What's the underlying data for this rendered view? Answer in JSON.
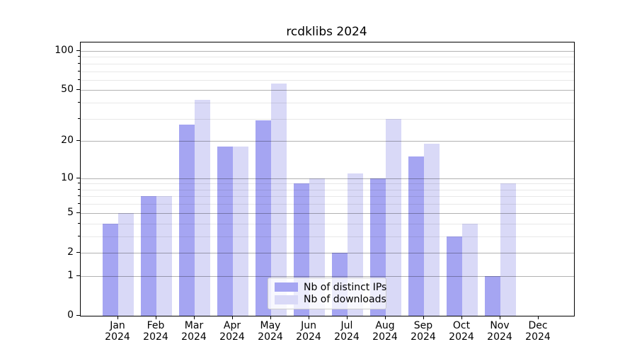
{
  "chart_data": {
    "type": "bar",
    "title": "rcdklibs 2024",
    "categories": [
      "Jan",
      "Feb",
      "Mar",
      "Apr",
      "May",
      "Jun",
      "Jul",
      "Aug",
      "Sep",
      "Oct",
      "Nov",
      "Dec"
    ],
    "category_year": "2024",
    "series": [
      {
        "name": "Nb of distinct IPs",
        "color": "#a5a5f2",
        "values": [
          4,
          7,
          27,
          18,
          29,
          9,
          2,
          10,
          15,
          3,
          1,
          0
        ]
      },
      {
        "name": "Nb of downloads",
        "color": "#d9d9f7",
        "values": [
          5,
          7,
          42,
          18,
          56,
          10,
          11,
          30,
          19,
          4,
          9,
          0
        ]
      }
    ],
    "yscale": "log1p",
    "ylim": [
      0,
      116
    ],
    "yticks": [
      0,
      1,
      2,
      5,
      10,
      20,
      50,
      100
    ],
    "yticks_minor": [
      3,
      4,
      6,
      7,
      8,
      9,
      30,
      40,
      60,
      70,
      80,
      90
    ],
    "grid": true,
    "grid_above_bars": true,
    "legend_position": "bottom-center",
    "colors": {
      "grid_major": "rgba(0,0,0,0.30)",
      "grid_minor": "rgba(0,0,0,0.09)",
      "spine": "#000000",
      "background": "#ffffff"
    }
  }
}
